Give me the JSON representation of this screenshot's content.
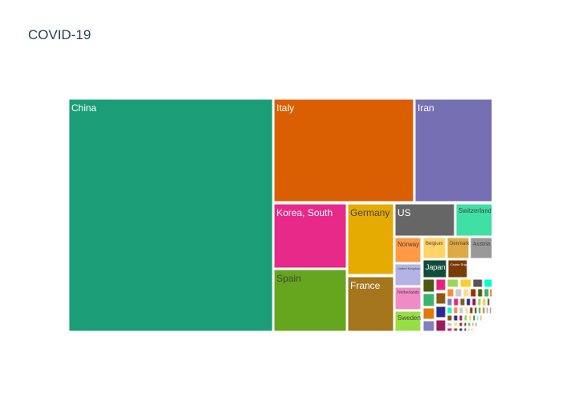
{
  "chart_data": {
    "type": "treemap",
    "title": "COVID-19",
    "tiles": [
      {
        "label": "China",
        "color": "#1b9e77",
        "text_color": "#ffffff"
      },
      {
        "label": "Italy",
        "color": "#d95f02",
        "text_color": "#ffffff"
      },
      {
        "label": "Iran",
        "color": "#7570b3",
        "text_color": "#ffffff"
      },
      {
        "label": "Korea, South",
        "color": "#e7298a",
        "text_color": "#ffffff"
      },
      {
        "label": "Spain",
        "color": "#66a61e",
        "text_color": "#444444"
      },
      {
        "label": "Germany",
        "color": "#e6ab02",
        "text_color": "#444444"
      },
      {
        "label": "France",
        "color": "#a6761d",
        "text_color": "#ffffff"
      },
      {
        "label": "US",
        "color": "#666666",
        "text_color": "#ffffff"
      },
      {
        "label": "Switzerland",
        "color": "#3fdfa6",
        "text_color": "#444444"
      },
      {
        "label": "Norway",
        "color": "#ff9944",
        "text_color": "#444444"
      },
      {
        "label": "Belgium",
        "color": "#ffd366",
        "text_color": "#444444"
      },
      {
        "label": "Denmark",
        "color": "#ddaa44",
        "text_color": "#444444"
      },
      {
        "label": "Austria",
        "color": "#999999",
        "text_color": "#444444"
      },
      {
        "label": "United Kingdom",
        "color": "#b3b3e6",
        "text_color": "#444444"
      },
      {
        "label": "Japan",
        "color": "#0f4d3a",
        "text_color": "#ffffff"
      },
      {
        "label": "Cruise Ship",
        "color": "#7a3c06",
        "text_color": "#ffffff"
      },
      {
        "label": "Netherlands",
        "color": "#f08cc4",
        "text_color": "#444444"
      },
      {
        "label": "Sweden",
        "color": "#99dd44",
        "text_color": "#444444"
      }
    ],
    "small_tile_colors": [
      "#4a5a10",
      "#3bb36e",
      "#e07a10",
      "#7f7fc0",
      "#e3247f",
      "#8a5a12",
      "#2a2a8c",
      "#9b1b5c",
      "#9bd65a",
      "#ffcc33",
      "#555555",
      "#00ffcc",
      "#ff8833",
      "#cccccc",
      "#ffdd88",
      "#993300"
    ]
  }
}
